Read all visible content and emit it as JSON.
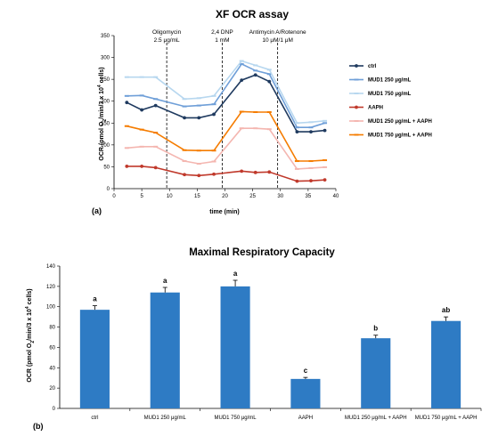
{
  "chart_data": [
    {
      "type": "line",
      "panel_label": "(a)",
      "title": "XF OCR assay",
      "xlabel": "time (min)",
      "ylabel_html": "OCR (pmol O₂/min/3 x 10⁴ cells)",
      "ylabel_parts": [
        "OCR (pmol O",
        "2",
        "/min/3 x 10",
        "4",
        " cells)"
      ],
      "xlim": [
        0,
        40
      ],
      "ylim": [
        0,
        350
      ],
      "xticks": [
        0,
        5,
        10,
        15,
        20,
        25,
        30,
        35,
        40
      ],
      "yticks": [
        0,
        50,
        100,
        150,
        200,
        250,
        300,
        350
      ],
      "x": [
        2.3,
        5,
        7.5,
        12.7,
        15.3,
        18,
        23,
        25.5,
        28,
        33,
        35.5,
        38
      ],
      "annotations": [
        {
          "x": 9.5,
          "label": "Oligomycin",
          "sublabel": "2.5 μg/mL"
        },
        {
          "x": 19.5,
          "label": "2,4 DNP",
          "sublabel": "1 mM"
        },
        {
          "x": 29.5,
          "label": "Antimycin A/Rotenone",
          "sublabel": "10 μM/1 μM"
        }
      ],
      "legend_position": "right",
      "series": [
        {
          "name": "ctrl",
          "color": "#1f3a5f",
          "marker": "circle",
          "values": [
            197,
            180,
            190,
            162,
            162,
            170,
            248,
            260,
            245,
            130,
            130,
            133
          ]
        },
        {
          "name": "MUD1 250 μg/mL",
          "color": "#6f9fd8",
          "marker": "dash",
          "values": [
            212,
            213,
            205,
            188,
            190,
            193,
            285,
            270,
            262,
            140,
            140,
            150
          ]
        },
        {
          "name": "MUD1 750 μg/mL",
          "color": "#b7d7ef",
          "marker": "dash",
          "values": [
            255,
            255,
            255,
            205,
            207,
            212,
            292,
            282,
            272,
            150,
            152,
            155
          ]
        },
        {
          "name": "AAPH",
          "color": "#c0392b",
          "marker": "circle",
          "values": [
            51,
            51,
            48,
            32,
            30,
            33,
            40,
            37,
            38,
            17,
            18,
            20
          ]
        },
        {
          "name": "MUD1 250 μg/mL + AAPH",
          "color": "#f4b6b0",
          "marker": "dash",
          "values": [
            93,
            96,
            96,
            63,
            57,
            62,
            138,
            138,
            136,
            45,
            47,
            49
          ]
        },
        {
          "name": "MUD1 750 μg/mL + AAPH",
          "color": "#f57c00",
          "marker": "dash",
          "values": [
            143,
            135,
            128,
            88,
            87,
            87,
            176,
            175,
            175,
            63,
            63,
            65
          ]
        }
      ]
    },
    {
      "type": "bar",
      "panel_label": "(b)",
      "title": "Maximal Respiratory Capacity",
      "ylabel_parts": [
        "OCR (pmol O",
        "2",
        "/min/3 x 10",
        "4",
        " cells)"
      ],
      "ylim": [
        0,
        140
      ],
      "yticks": [
        0,
        20,
        40,
        60,
        80,
        100,
        120,
        140
      ],
      "bar_color": "#2e7bc4",
      "categories": [
        "ctrl",
        "MUD1 250 μg/mL",
        "MUD1 750 μg/mL",
        "AAPH",
        "MUD1 250 μg/mL + AAPH",
        "MUD1 750 μg/mL + AAPH"
      ],
      "values": [
        97,
        114,
        120,
        29,
        69,
        86
      ],
      "errors": [
        4,
        5,
        6,
        1.5,
        3,
        4
      ],
      "significance": [
        "a",
        "a",
        "a",
        "c",
        "b",
        "ab"
      ]
    }
  ]
}
